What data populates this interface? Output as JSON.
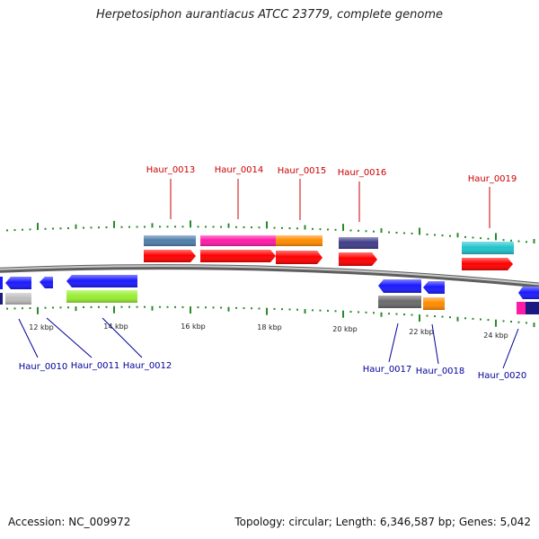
{
  "title": "Herpetosiphon aurantiacus ATCC 23779, complete genome",
  "accession_text": "Accession: NC_009972",
  "topology_text": "Topology: circular; Length: 6,346,587 bp; Genes: 5,042",
  "scale": {
    "unit": "kbp",
    "labels": [
      "12 kbp",
      "14 kbp",
      "16 kbp",
      "18 kbp",
      "20 kbp",
      "22 kbp",
      "24 kbp"
    ]
  },
  "colors": {
    "backbone": "#8a8a8a",
    "forward_label": "#cc0000",
    "reverse_label": "#000099",
    "tick": "#2a8a2a",
    "cds_forward": "#ff0000",
    "cds_reverse": "#1a1aff"
  },
  "genes_forward": [
    {
      "locus": "Haur_0013",
      "color": "#4f7fab"
    },
    {
      "locus": "Haur_0014",
      "color": "#ff1aa8"
    },
    {
      "locus": "Haur_0015",
      "color": "#ff8c00"
    },
    {
      "locus": "Haur_0016",
      "color": "#3f3d8a"
    },
    {
      "locus": "Haur_0019",
      "color": "#20c4cc"
    }
  ],
  "genes_reverse": [
    {
      "locus": "Haur_0010",
      "color": "#bdbdbd"
    },
    {
      "locus": "Haur_0011",
      "color": "#bdbdbd"
    },
    {
      "locus": "Haur_0012",
      "color": "#99ee33"
    },
    {
      "locus": "Haur_0017",
      "color": "#6a6a6a"
    },
    {
      "locus": "Haur_0018",
      "color": "#ff8c00"
    },
    {
      "locus": "Haur_0020",
      "color": "#ff1aa8"
    }
  ]
}
